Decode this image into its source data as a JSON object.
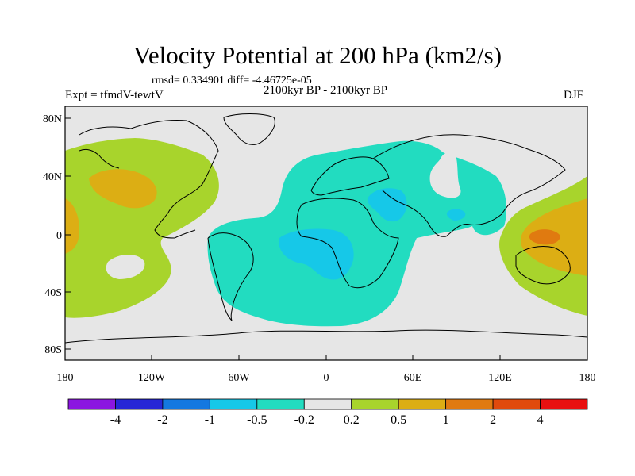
{
  "title": "Velocity Potential at 200 hPa (km2/s)",
  "stats": "rmsd= 0.334901 diff= -4.46725e-05",
  "subtitle": "2100kyr BP - 2100kyr BP",
  "experiment": "Expt = tfmdV-tewtV",
  "season": "DJF",
  "axes": {
    "lat_ticks": [
      "80N",
      "40N",
      "0",
      "40S",
      "80S"
    ],
    "lon_ticks": [
      "180",
      "120W",
      "60W",
      "0",
      "60E",
      "120E",
      "180"
    ]
  },
  "colorbar": {
    "labels": [
      "-4",
      "-2",
      "-1",
      "-0.5",
      "-0.2",
      "0.2",
      "0.5",
      "1",
      "2",
      "4"
    ],
    "colors": [
      "#8b16e0",
      "#2626d6",
      "#1478e0",
      "#16c8e8",
      "#22dcc0",
      "#e6e6e6",
      "#a8d42c",
      "#dcae14",
      "#e07a10",
      "#e04a0c",
      "#e81010"
    ]
  }
}
